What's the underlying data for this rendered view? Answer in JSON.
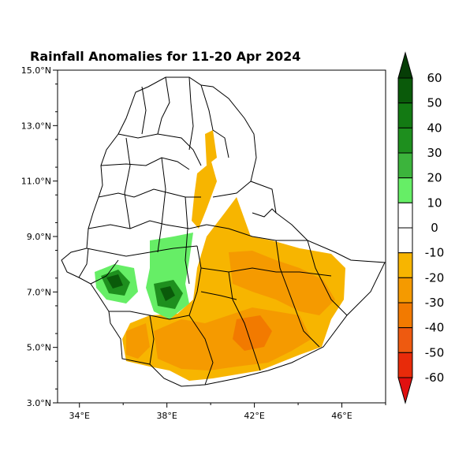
{
  "title": "Rainfall Anomalies for 11-20 Apr 2024",
  "lat_ticks": [
    {
      "label": "15.0°N",
      "value": 15
    },
    {
      "label": "13.0°N",
      "value": 13
    },
    {
      "label": "11.0°N",
      "value": 11
    },
    {
      "label": "9.0°N",
      "value": 9
    },
    {
      "label": "7.0°N",
      "value": 7
    },
    {
      "label": "5.0°N",
      "value": 5
    },
    {
      "label": "3.0°N",
      "value": 3
    }
  ],
  "lon_ticks": [
    {
      "label": "34°E",
      "value": 34
    },
    {
      "label": "38°E",
      "value": 38
    },
    {
      "label": "42°E",
      "value": 42
    },
    {
      "label": "46°E",
      "value": 46
    }
  ],
  "map_extent": {
    "lon": [
      33,
      48
    ],
    "lat": [
      3,
      15
    ]
  },
  "colorbar": {
    "labels": [
      "60",
      "50",
      "40",
      "30",
      "20",
      "10",
      "0",
      "-10",
      "-20",
      "-30",
      "-40",
      "-50",
      "-60"
    ],
    "bins": [
      {
        "from": 50,
        "to": 60,
        "color": "#0a5a0a"
      },
      {
        "from": 40,
        "to": 50,
        "color": "#137a13"
      },
      {
        "from": 30,
        "to": 40,
        "color": "#1e8f1e"
      },
      {
        "from": 20,
        "to": 30,
        "color": "#3cb43c"
      },
      {
        "from": 10,
        "to": 20,
        "color": "#66ee66"
      },
      {
        "from": 0,
        "to": 10,
        "color": "#ffffff"
      },
      {
        "from": -10,
        "to": 0,
        "color": "#ffffff"
      },
      {
        "from": -20,
        "to": -10,
        "color": "#f7b500"
      },
      {
        "from": -30,
        "to": -20,
        "color": "#f59a00"
      },
      {
        "from": -40,
        "to": -30,
        "color": "#f27a00"
      },
      {
        "from": -50,
        "to": -40,
        "color": "#ee5a10"
      },
      {
        "from": -60,
        "to": -50,
        "color": "#e82b0a"
      }
    ],
    "over_color": "#063d06",
    "under_color": "#e01010"
  }
}
